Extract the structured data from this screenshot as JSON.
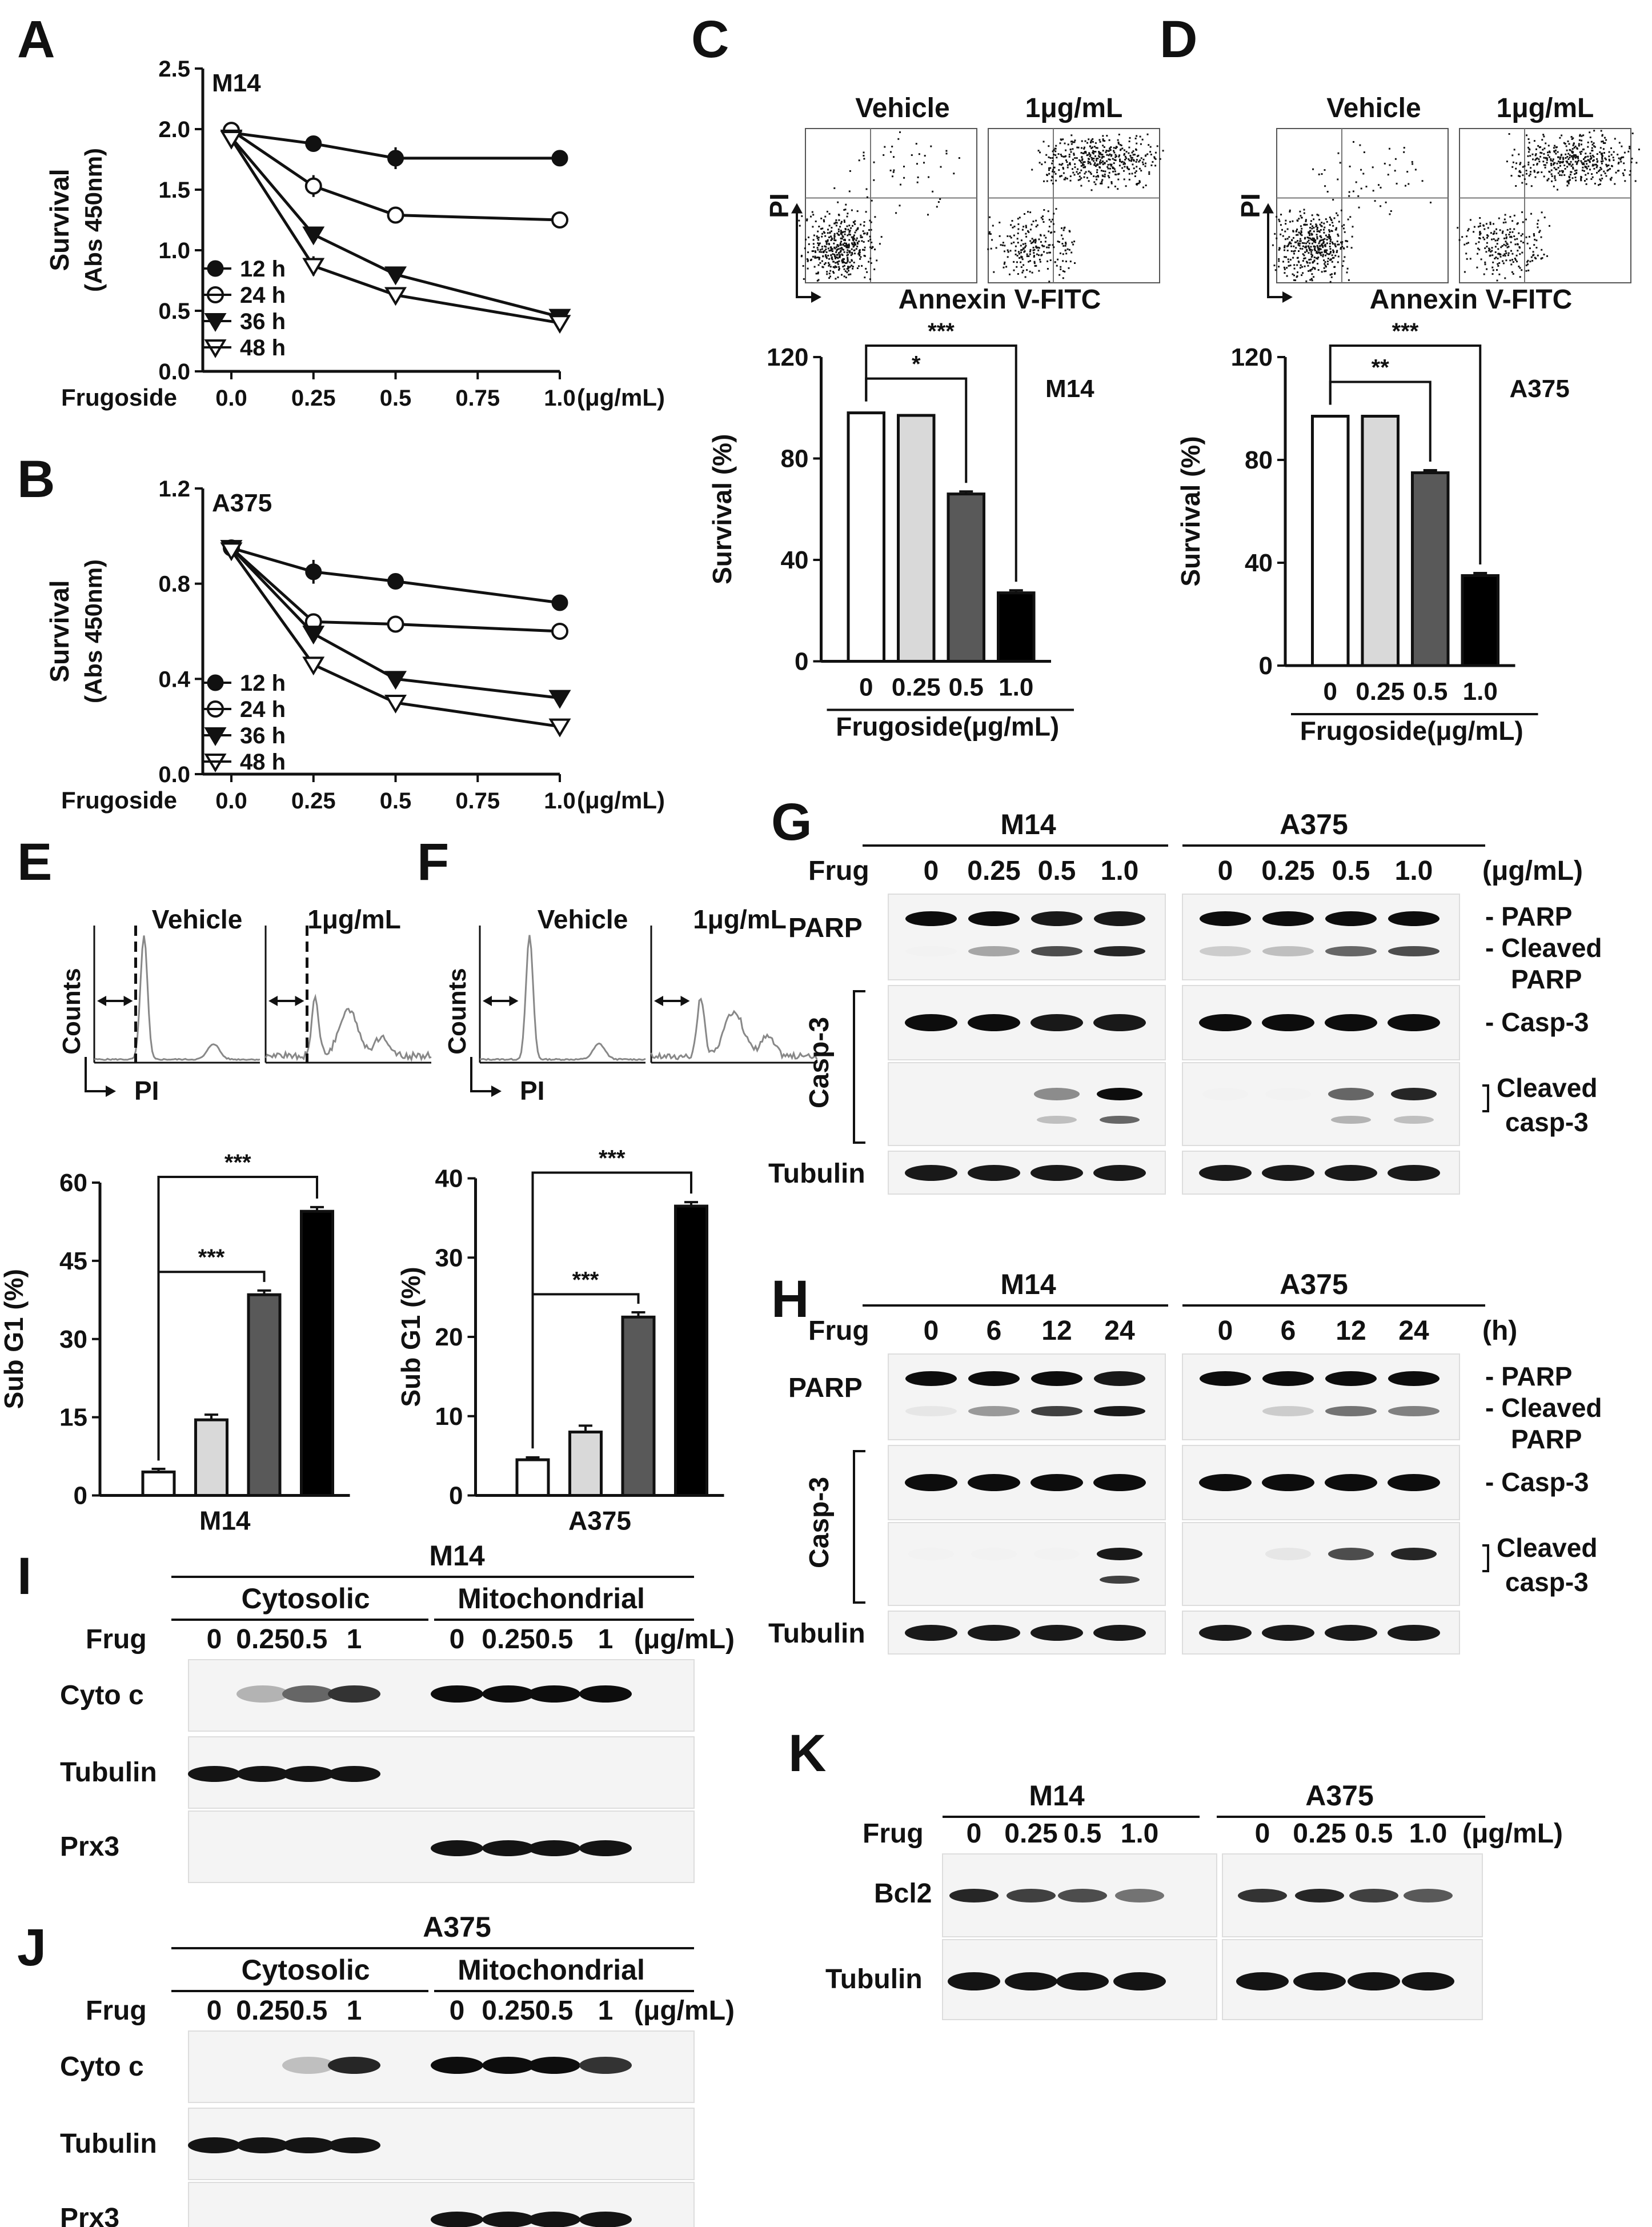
{
  "panel_letters": [
    "A",
    "B",
    "C",
    "D",
    "E",
    "F",
    "G",
    "H",
    "I",
    "J",
    "K"
  ],
  "survival_legend": [
    "12 h",
    "24 h",
    "36 h",
    "48 h"
  ],
  "frug_label": "Frugoside",
  "frug_short": "Frug",
  "unit_label": "(μg/mL)",
  "chart_data": [
    {
      "panel": "A",
      "type": "line",
      "cell_line": "M14",
      "ylabel": "Survival\n(Abs 450nm)",
      "xlabel": "Frugoside",
      "xunit": "(μg/mL)",
      "x": [
        0.0,
        0.25,
        0.5,
        1.0
      ],
      "xticks": [
        "0.0",
        "0.25",
        "0.5",
        "0.75",
        "1.0"
      ],
      "ylim": [
        0,
        2.5
      ],
      "yticks": [
        "0.0",
        "0.5",
        "1.0",
        "1.5",
        "2.0",
        "2.5"
      ],
      "series": [
        {
          "name": "12 h",
          "marker": "filled-circle",
          "values": [
            1.97,
            1.88,
            1.76,
            1.76
          ],
          "err": [
            0.05,
            0.06,
            0.09,
            0.02
          ]
        },
        {
          "name": "24 h",
          "marker": "open-circle",
          "values": [
            1.99,
            1.53,
            1.29,
            1.25
          ],
          "err": [
            0.06,
            0.09,
            0.03,
            0.02
          ]
        },
        {
          "name": "36 h",
          "marker": "filled-triangle",
          "values": [
            1.93,
            1.13,
            0.8,
            0.45
          ],
          "err": [
            0.05,
            0.05,
            0.03,
            0.05
          ]
        },
        {
          "name": "48 h",
          "marker": "open-triangle",
          "values": [
            1.92,
            0.87,
            0.63,
            0.4
          ],
          "err": [
            0.05,
            0.08,
            0.03,
            0.06
          ]
        }
      ]
    },
    {
      "panel": "B",
      "type": "line",
      "cell_line": "A375",
      "ylabel": "Survival\n(Abs 450nm)",
      "xlabel": "Frugoside",
      "xunit": "(μg/mL)",
      "x": [
        0.0,
        0.25,
        0.5,
        1.0
      ],
      "xticks": [
        "0.0",
        "0.25",
        "0.5",
        "0.75",
        "1.0"
      ],
      "ylim": [
        0,
        1.2
      ],
      "yticks": [
        "0.0",
        "0.4",
        "0.8",
        "1.2"
      ],
      "series": [
        {
          "name": "12 h",
          "marker": "filled-circle",
          "values": [
            0.95,
            0.85,
            0.81,
            0.72
          ],
          "err": [
            0.03,
            0.05,
            0.02,
            0.02
          ]
        },
        {
          "name": "24 h",
          "marker": "open-circle",
          "values": [
            0.95,
            0.64,
            0.63,
            0.6
          ],
          "err": [
            0.03,
            0.02,
            0.02,
            0.02
          ]
        },
        {
          "name": "36 h",
          "marker": "filled-triangle",
          "values": [
            0.95,
            0.59,
            0.4,
            0.32
          ],
          "err": [
            0.03,
            0.02,
            0.02,
            0.02
          ]
        },
        {
          "name": "48 h",
          "marker": "open-triangle",
          "values": [
            0.94,
            0.46,
            0.3,
            0.2
          ],
          "err": [
            0.03,
            0.02,
            0.02,
            0.02
          ]
        }
      ]
    },
    {
      "panel": "C",
      "type": "bar",
      "cell_line": "M14",
      "ylabel": "Survival (%)",
      "xlabel": "Frugoside(μg/mL)",
      "categories": [
        "0",
        "0.25",
        "0.5",
        "1.0"
      ],
      "values": [
        98,
        97,
        66,
        27
      ],
      "err": [
        0,
        0,
        1,
        1
      ],
      "fills": [
        "#ffffff",
        "#d9d9d9",
        "#595959",
        "#000000"
      ],
      "ylim": [
        0,
        120
      ],
      "yticks": [
        "0",
        "40",
        "80",
        "120"
      ],
      "significance": [
        {
          "from": 0,
          "to": 2,
          "label": "*"
        },
        {
          "from": 0,
          "to": 3,
          "label": "***"
        }
      ]
    },
    {
      "panel": "D",
      "type": "bar",
      "cell_line": "A375",
      "ylabel": "Survival (%)",
      "xlabel": "Frugoside(μg/mL)",
      "categories": [
        "0",
        "0.25",
        "0.5",
        "1.0"
      ],
      "values": [
        97,
        97,
        75,
        35
      ],
      "err": [
        0,
        0,
        1,
        1
      ],
      "fills": [
        "#ffffff",
        "#d9d9d9",
        "#595959",
        "#000000"
      ],
      "ylim": [
        0,
        120
      ],
      "yticks": [
        "0",
        "40",
        "80",
        "120"
      ],
      "significance": [
        {
          "from": 0,
          "to": 2,
          "label": "**"
        },
        {
          "from": 0,
          "to": 3,
          "label": "***"
        }
      ]
    },
    {
      "panel": "E",
      "type": "bar",
      "cell_line": "M14",
      "ylabel": "Sub G1 (%)",
      "xlabel": "M14",
      "categories": [
        "0",
        "0.25",
        "0.5",
        "1.0"
      ],
      "values": [
        4.5,
        14.5,
        38.5,
        54.5
      ],
      "err": [
        0.6,
        1.0,
        0.8,
        0.8
      ],
      "fills": [
        "#ffffff",
        "#d9d9d9",
        "#595959",
        "#000000"
      ],
      "ylim": [
        0,
        60
      ],
      "yticks": [
        "0",
        "15",
        "30",
        "45",
        "60"
      ],
      "significance": [
        {
          "from": 0,
          "to": 2,
          "label": "***"
        },
        {
          "from": 0,
          "to": 3,
          "label": "***"
        }
      ]
    },
    {
      "panel": "F",
      "type": "bar",
      "cell_line": "A375",
      "ylabel": "Sub G1 (%)",
      "xlabel": "A375",
      "categories": [
        "0",
        "0.25",
        "0.5",
        "1.0"
      ],
      "values": [
        4.5,
        8,
        22.5,
        36.5
      ],
      "err": [
        0.3,
        0.8,
        0.6,
        0.5
      ],
      "fills": [
        "#ffffff",
        "#d9d9d9",
        "#595959",
        "#000000"
      ],
      "ylim": [
        0,
        40
      ],
      "yticks": [
        "0",
        "10",
        "20",
        "30",
        "40"
      ],
      "significance": [
        {
          "from": 0,
          "to": 2,
          "label": "***"
        },
        {
          "from": 0,
          "to": 3,
          "label": "***"
        }
      ]
    }
  ],
  "flow": {
    "C": {
      "labels": [
        "Vehicle",
        "1μg/mL"
      ],
      "yaxis": "PI",
      "xaxis": "Annexin V-FITC"
    },
    "D": {
      "labels": [
        "Vehicle",
        "1μg/mL"
      ],
      "yaxis": "PI",
      "xaxis": "Annexin V-FITC"
    },
    "E": {
      "labels": [
        "Vehicle",
        "1μg/mL"
      ],
      "yaxis": "Counts",
      "xaxis": "PI"
    },
    "F": {
      "labels": [
        "Vehicle",
        "1μg/mL"
      ],
      "yaxis": "Counts",
      "xaxis": "PI"
    }
  },
  "blots": {
    "G": {
      "groups": [
        "M14",
        "A375"
      ],
      "lanes": [
        "0",
        "0.25",
        "0.5",
        "1.0"
      ],
      "unit": "(μg/mL)",
      "row_labels": [
        "PARP",
        "Casp-3",
        "Tubulin"
      ],
      "right_labels": [
        "- PARP",
        "- Cleaved",
        "PARP",
        "- Casp-3",
        "Cleaved",
        "casp-3"
      ]
    },
    "H": {
      "groups": [
        "M14",
        "A375"
      ],
      "lanes": [
        "0",
        "6",
        "12",
        "24"
      ],
      "unit": "(h)",
      "row_labels": [
        "PARP",
        "Casp-3",
        "Tubulin"
      ],
      "right_labels": [
        "- PARP",
        "- Cleaved",
        "PARP",
        "- Casp-3",
        "Cleaved",
        "casp-3"
      ]
    },
    "I": {
      "title": "M14",
      "fractions": [
        "Cytosolic",
        "Mitochondrial"
      ],
      "lanes": [
        "0",
        "0.25",
        "0.5",
        "1",
        "0",
        "0.25",
        "0.5",
        "1"
      ],
      "unit": "(μg/mL)",
      "row_labels": [
        "Cyto c",
        "Tubulin",
        "Prx3"
      ]
    },
    "J": {
      "title": "A375",
      "fractions": [
        "Cytosolic",
        "Mitochondrial"
      ],
      "lanes": [
        "0",
        "0.25",
        "0.5",
        "1",
        "0",
        "0.25",
        "0.5",
        "1"
      ],
      "unit": "(μg/mL)",
      "row_labels": [
        "Cyto c",
        "Tubulin",
        "Prx3"
      ]
    },
    "K": {
      "groups": [
        "M14",
        "A375"
      ],
      "lanes": [
        "0",
        "0.25",
        "0.5",
        "1.0"
      ],
      "unit": "(μg/mL)",
      "row_labels": [
        "Bcl2",
        "Tubulin"
      ]
    }
  }
}
